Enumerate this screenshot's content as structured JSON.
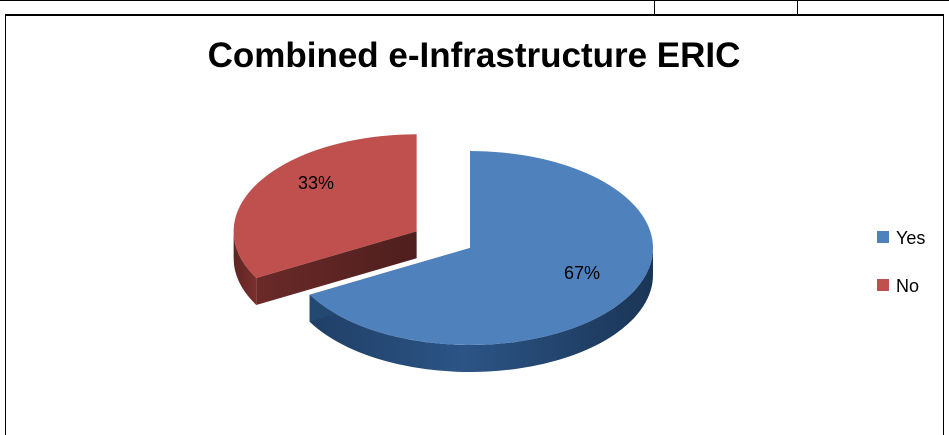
{
  "chart_data": {
    "type": "pie",
    "title": "Combined e-Infrastructure ERIC",
    "categories": [
      "Yes",
      "No"
    ],
    "values": [
      67,
      33
    ],
    "labels": [
      "67%",
      "33%"
    ],
    "colors": [
      "#4f81bd",
      "#c0504d"
    ],
    "exploded": "No",
    "three_d": true,
    "legend_position": "right"
  }
}
